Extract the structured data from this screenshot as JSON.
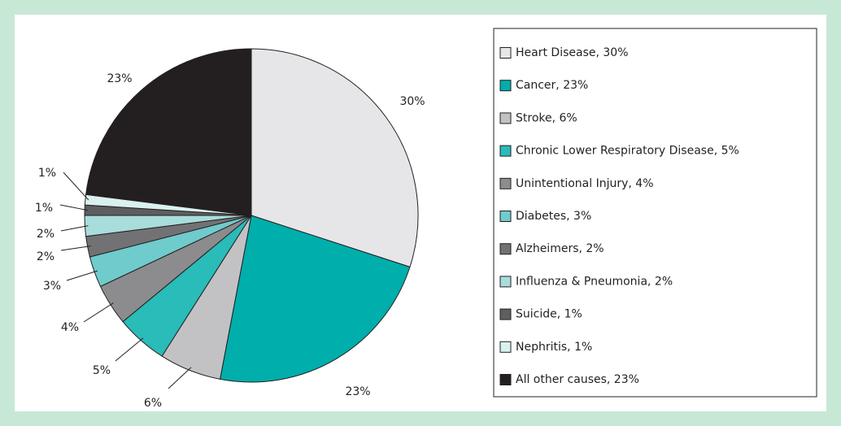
{
  "chart_data": {
    "type": "pie",
    "categories": [
      "Heart Disease, 30%",
      "Cancer, 23%",
      "Stroke, 6%",
      "Chronic Lower Respiratory Disease, 5%",
      "Unintentional Injury, 4%",
      "Diabetes, 3%",
      "Alzheimers, 2%",
      "Influenza & Pneumonia, 2%",
      "Suicide, 1%",
      "Nephritis, 1%",
      "All other causes, 23%"
    ],
    "values": [
      30,
      23,
      6,
      5,
      4,
      3,
      2,
      2,
      1,
      1,
      23
    ],
    "value_labels": [
      "30%",
      "23%",
      "6%",
      "5%",
      "4%",
      "3%",
      "2%",
      "2%",
      "1%",
      "1%",
      "23%"
    ],
    "colors": [
      "#e6e6e8",
      "#00aeac",
      "#c2c2c4",
      "#29bcb8",
      "#8c8c8e",
      "#6fcbcc",
      "#727274",
      "#a8dddc",
      "#5e5e60",
      "#d9f1ef",
      "#231f20"
    ],
    "legend": "right"
  }
}
